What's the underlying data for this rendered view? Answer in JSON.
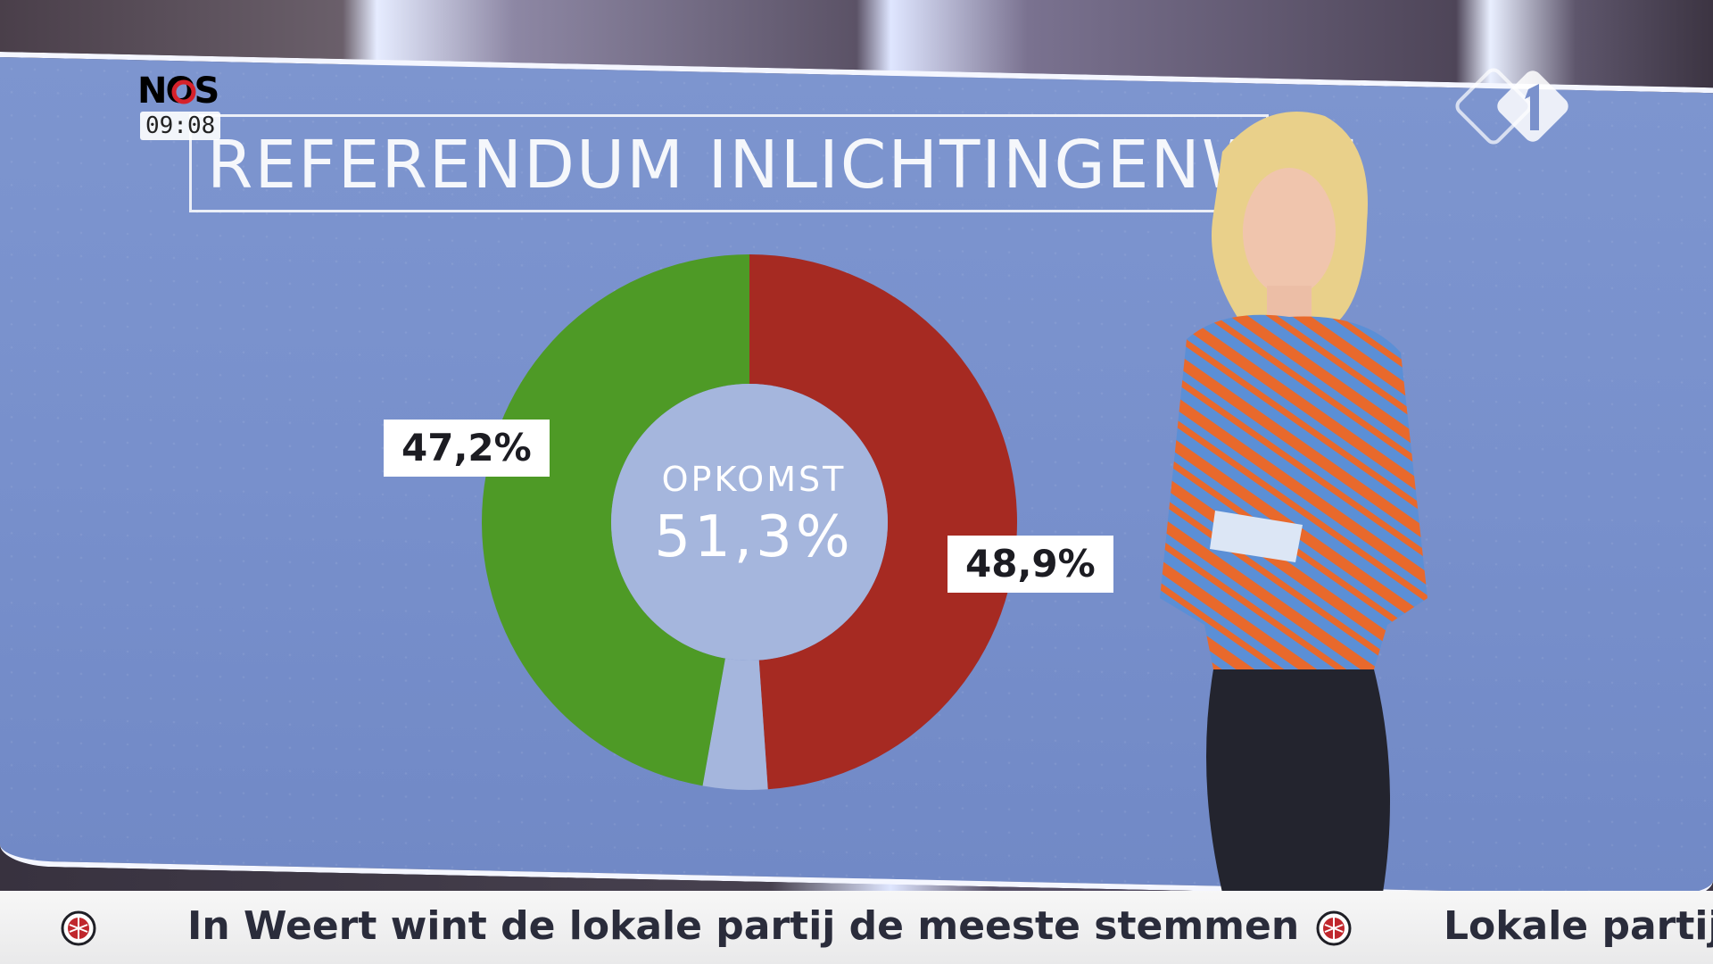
{
  "broadcast": {
    "channel_logo": "NOS",
    "clock": "09:08",
    "network_logo_icon": "npo1-logo"
  },
  "screen": {
    "title": "REFERENDUM INLICHTINGENWET"
  },
  "chart_data": {
    "type": "pie",
    "style": "donut",
    "title": "REFERENDUM INLICHTINGENWET",
    "center_caption": "OPKOMST",
    "center_value": "51,3%",
    "slices": [
      {
        "label": "47,2%",
        "value": 47.2,
        "color": "#4e9a26",
        "position": "left"
      },
      {
        "label": "48,9%",
        "value": 48.9,
        "color": "#a62a22",
        "position": "right"
      },
      {
        "label": "",
        "value": 3.9,
        "color": "#a5b6dd",
        "position": "bottom"
      }
    ]
  },
  "ticker": {
    "items": [
      "In Weert wint de lokale partij de meeste stemmen",
      "Lokale partij"
    ],
    "bullet_icon": "globe-bullet-icon"
  },
  "colors": {
    "screen_bg": "#7890cc",
    "yes_green": "#4e9a26",
    "no_red": "#a62a22",
    "ticker_text": "#2a2c3b"
  }
}
